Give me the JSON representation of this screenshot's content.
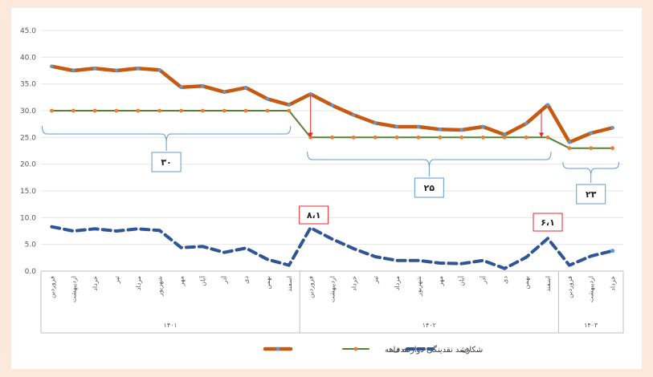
{
  "chart_data": {
    "type": "line",
    "ylim": [
      0,
      45
    ],
    "yticks": [
      "0.0",
      "5.0",
      "10.0",
      "15.0",
      "20.0",
      "25.0",
      "30.0",
      "35.0",
      "40.0",
      "45.0"
    ],
    "grid": true,
    "legend_position": "bottom",
    "months": [
      "فروردین",
      "اردیبهشت",
      "خرداد",
      "تیر",
      "مرداد",
      "شهریور",
      "مهر",
      "آبان",
      "آذر",
      "دی",
      "بهمن",
      "اسفند",
      "فروردین",
      "اردیبهشت",
      "خرداد",
      "تیر",
      "مرداد",
      "شهریور",
      "مهر",
      "آبان",
      "آذر",
      "دی",
      "بهمن",
      "اسفند",
      "فروردین",
      "اردیبهشت",
      "خرداد"
    ],
    "years": [
      {
        "label": "۱۴۰۱",
        "start": 0,
        "end": 11
      },
      {
        "label": "۱۴۰۲",
        "start": 12,
        "end": 23
      },
      {
        "label": "۱۴۰۳",
        "start": 24,
        "end": 26
      }
    ],
    "series": [
      {
        "name": "رشد نقدینگی دوازده ماهه",
        "color": "#c55a11",
        "marker": "#5b9bd5",
        "values": [
          38.3,
          37.5,
          37.9,
          37.5,
          37.9,
          37.6,
          34.4,
          34.6,
          33.5,
          34.3,
          32.2,
          31.1,
          33.1,
          31.0,
          29.2,
          27.7,
          27.0,
          27.0,
          26.5,
          26.4,
          27.0,
          25.5,
          27.6,
          31.1,
          24.1,
          25.8,
          26.8
        ]
      },
      {
        "name": "هدف",
        "color": "#548235",
        "marker": "#ed7d31",
        "values": [
          30,
          30,
          30,
          30,
          30,
          30,
          30,
          30,
          30,
          30,
          30,
          30,
          25,
          25,
          25,
          25,
          25,
          25,
          25,
          25,
          25,
          25,
          25,
          25,
          23,
          23,
          23
        ]
      },
      {
        "name": "شکاف",
        "color": "#2f5597",
        "marker": "#5b9bd5",
        "dashed": true,
        "values": [
          8.3,
          7.5,
          7.9,
          7.5,
          7.9,
          7.6,
          4.4,
          4.6,
          3.5,
          4.3,
          2.2,
          1.1,
          8.1,
          6.0,
          4.2,
          2.7,
          2.0,
          2.0,
          1.5,
          1.4,
          2.0,
          0.5,
          2.6,
          6.1,
          1.1,
          2.8,
          3.8
        ]
      }
    ],
    "annotations": {
      "target_30": "۳۰",
      "target_25": "۲۵",
      "target_23": "۲۳",
      "gap_1402_start": "۸،۱",
      "gap_1402_end": "۶،۱"
    }
  }
}
